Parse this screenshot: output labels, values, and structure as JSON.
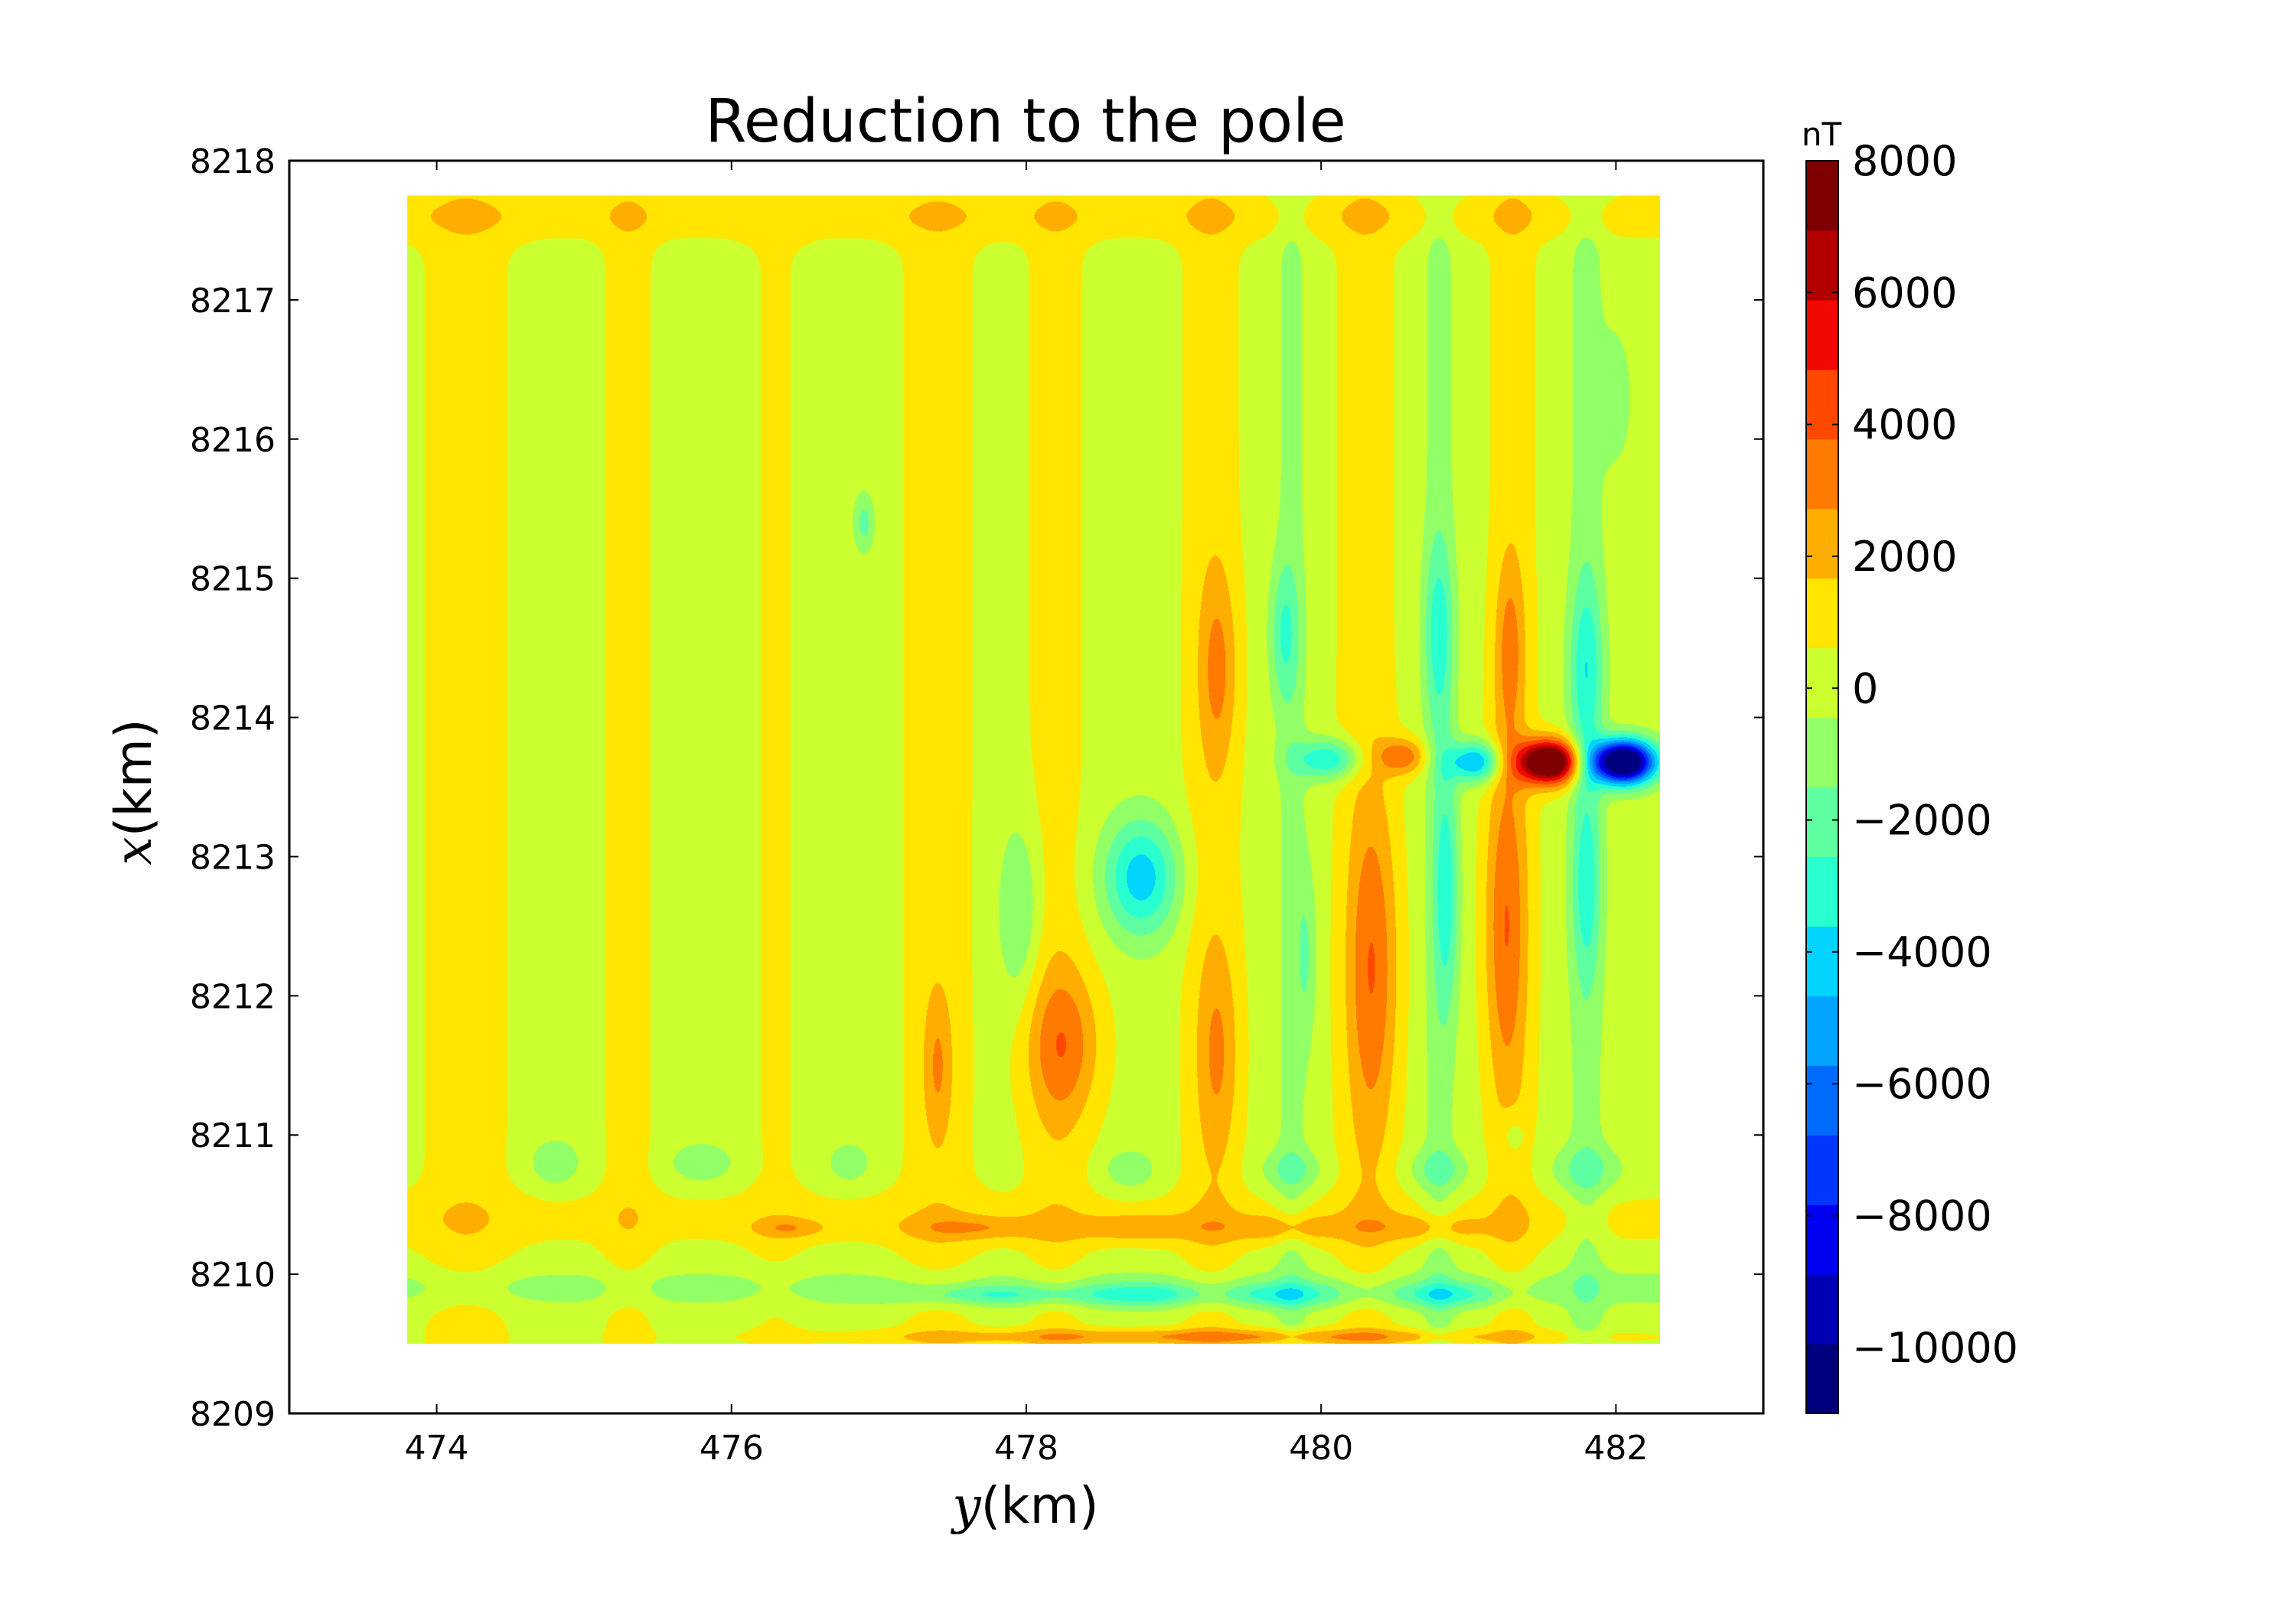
{
  "chart_data": {
    "type": "heatmap",
    "subtype": "filled-contour",
    "title": "Reduction to the pole",
    "xlabel": {
      "variable": "y",
      "unit": "(km)"
    },
    "ylabel": {
      "variable": "x",
      "unit": "(km)"
    },
    "xlim": [
      473,
      483
    ],
    "ylim": [
      8209,
      8218
    ],
    "xticks": [
      474,
      476,
      478,
      480,
      482
    ],
    "yticks": [
      8209,
      8210,
      8211,
      8212,
      8213,
      8214,
      8215,
      8216,
      8217,
      8218
    ],
    "data_extent": {
      "y_range": [
        473.8,
        482.3
      ],
      "x_range": [
        8209.5,
        8217.75
      ]
    },
    "grid": false,
    "colormap": "jet",
    "colorbar": {
      "unit": "nT",
      "range": [
        -11000,
        8000
      ],
      "level_step": 1000,
      "ticks": [
        8000,
        6000,
        4000,
        2000,
        0,
        -2000,
        -4000,
        -6000,
        -8000,
        -10000
      ],
      "tick_labels": [
        "8000",
        "6000",
        "4000",
        "2000",
        "0",
        "−2000",
        "−4000",
        "−6000",
        "−8000",
        "−10000"
      ],
      "colors": [
        "#00007f",
        "#0000b2",
        "#0000f1",
        "#0036ff",
        "#006cff",
        "#00a4ff",
        "#00d4ff",
        "#29ffce",
        "#5effa0",
        "#91ff66",
        "#ccff2f",
        "#ffe500",
        "#ffae00",
        "#ff7a00",
        "#ff4800",
        "#f10800",
        "#b20000",
        "#7f0000"
      ]
    },
    "background_level": -400,
    "anomalies": [
      {
        "y": 481.55,
        "x": 8213.68,
        "sy": 0.15,
        "sx": 0.11,
        "value": 9500
      },
      {
        "y": 482.05,
        "x": 8213.68,
        "sy": 0.15,
        "sx": 0.11,
        "value": -13000
      },
      {
        "y": 481.05,
        "x": 8213.68,
        "sy": 0.13,
        "sx": 0.1,
        "value": -4800
      },
      {
        "y": 480.55,
        "x": 8213.72,
        "sy": 0.12,
        "sx": 0.09,
        "value": 3000
      },
      {
        "y": 480.05,
        "x": 8213.7,
        "sy": 0.16,
        "sx": 0.1,
        "value": -3600
      },
      {
        "y": 478.78,
        "x": 8212.85,
        "sy": 0.18,
        "sx": 0.3,
        "value": -4200
      },
      {
        "y": 478.25,
        "x": 8211.65,
        "sy": 0.18,
        "sx": 0.4,
        "value": 2700
      },
      {
        "y": 479.3,
        "x": 8214.35,
        "sy": 0.09,
        "sx": 0.5,
        "value": 2000
      },
      {
        "y": 479.3,
        "x": 8211.6,
        "sy": 0.1,
        "sx": 0.55,
        "value": 1800
      },
      {
        "y": 480.35,
        "x": 8212.2,
        "sy": 0.12,
        "sx": 0.85,
        "value": 2600
      },
      {
        "y": 481.25,
        "x": 8212.5,
        "sy": 0.1,
        "sx": 0.85,
        "value": 2600
      },
      {
        "y": 481.28,
        "x": 8214.5,
        "sy": 0.07,
        "sx": 0.45,
        "value": 2000
      },
      {
        "y": 479.75,
        "x": 8214.6,
        "sy": 0.07,
        "sx": 0.35,
        "value": -2200
      },
      {
        "y": 480.8,
        "x": 8214.6,
        "sy": 0.07,
        "sx": 0.45,
        "value": -2400
      },
      {
        "y": 481.8,
        "x": 8214.35,
        "sy": 0.08,
        "sx": 0.45,
        "value": -2600
      },
      {
        "y": 480.85,
        "x": 8212.75,
        "sy": 0.06,
        "sx": 0.6,
        "value": -2600
      },
      {
        "y": 481.8,
        "x": 8212.8,
        "sy": 0.07,
        "sx": 0.5,
        "value": -2400
      },
      {
        "y": 477.4,
        "x": 8211.5,
        "sy": 0.07,
        "sx": 0.4,
        "value": 1800
      },
      {
        "y": 477.95,
        "x": 8212.6,
        "sy": 0.1,
        "sx": 0.45,
        "value": -1800
      },
      {
        "y": 476.9,
        "x": 8215.4,
        "sy": 0.05,
        "sx": 0.15,
        "value": -2000
      },
      {
        "y": 477.7,
        "x": 8210.33,
        "sy": 0.35,
        "sx": 0.06,
        "value": 1600
      },
      {
        "y": 478.75,
        "x": 8210.33,
        "sy": 0.3,
        "sx": 0.07,
        "value": 1700
      },
      {
        "y": 479.75,
        "x": 8210.33,
        "sy": 0.3,
        "sx": 0.07,
        "value": 1700
      },
      {
        "y": 480.75,
        "x": 8210.33,
        "sy": 0.3,
        "sx": 0.07,
        "value": 1500
      },
      {
        "y": 476.4,
        "x": 8210.33,
        "sy": 0.18,
        "sx": 0.05,
        "value": 1500
      },
      {
        "y": 478.8,
        "x": 8209.85,
        "sy": 0.3,
        "sx": 0.06,
        "value": -2400
      },
      {
        "y": 479.75,
        "x": 8209.85,
        "sy": 0.3,
        "sx": 0.06,
        "value": -2400
      },
      {
        "y": 480.85,
        "x": 8209.85,
        "sy": 0.28,
        "sx": 0.06,
        "value": -2200
      },
      {
        "y": 477.8,
        "x": 8209.85,
        "sy": 0.45,
        "sx": 0.05,
        "value": -2000
      },
      {
        "y": 479.3,
        "x": 8209.55,
        "sy": 1.6,
        "sx": 0.04,
        "value": 2400
      },
      {
        "y": 474.8,
        "x": 8210.8,
        "sy": 0.12,
        "sx": 0.12,
        "value": -1500
      },
      {
        "y": 475.8,
        "x": 8210.8,
        "sy": 0.15,
        "sx": 0.1,
        "value": -1500
      },
      {
        "y": 476.8,
        "x": 8210.8,
        "sy": 0.1,
        "sx": 0.1,
        "value": -1400
      },
      {
        "y": 478.7,
        "x": 8210.75,
        "sy": 0.12,
        "sx": 0.1,
        "value": -1500
      },
      {
        "y": 479.8,
        "x": 8210.75,
        "sy": 0.15,
        "sx": 0.1,
        "value": -1500
      },
      {
        "y": 480.8,
        "x": 8210.75,
        "sy": 0.15,
        "sx": 0.1,
        "value": -1500
      },
      {
        "y": 481.8,
        "x": 8210.75,
        "sy": 0.18,
        "sx": 0.12,
        "value": -1500
      },
      {
        "y": 479.9,
        "x": 8212.3,
        "sy": 0.05,
        "sx": 0.45,
        "value": -1400
      },
      {
        "y": 482.0,
        "x": 8216.3,
        "sy": 0.08,
        "sx": 0.35,
        "value": -1200
      },
      {
        "y": 481.3,
        "x": 8211.0,
        "sy": 0.06,
        "sx": 0.12,
        "value": -1200
      }
    ],
    "bands": [
      {
        "x": 8217.6,
        "s": 0.12,
        "value": 900
      },
      {
        "x": 8210.4,
        "s": 0.14,
        "value": 700
      },
      {
        "x": 8209.9,
        "s": 0.1,
        "value": -1000
      }
    ],
    "stripes": [
      {
        "y": 474.2,
        "s": 0.22,
        "value": 900
      },
      {
        "y": 475.3,
        "s": 0.13,
        "value": 800
      },
      {
        "y": 476.3,
        "s": 0.15,
        "value": 500
      },
      {
        "y": 477.4,
        "s": 0.2,
        "value": 800
      },
      {
        "y": 478.2,
        "s": 0.15,
        "value": 800
      },
      {
        "y": 479.25,
        "s": 0.15,
        "value": 900
      },
      {
        "y": 480.3,
        "s": 0.15,
        "value": 900
      },
      {
        "y": 481.3,
        "s": 0.12,
        "value": 900
      },
      {
        "y": 479.8,
        "s": 0.08,
        "value": -900
      },
      {
        "y": 480.8,
        "s": 0.08,
        "value": -1000
      },
      {
        "y": 481.8,
        "s": 0.09,
        "value": -1000
      }
    ]
  }
}
